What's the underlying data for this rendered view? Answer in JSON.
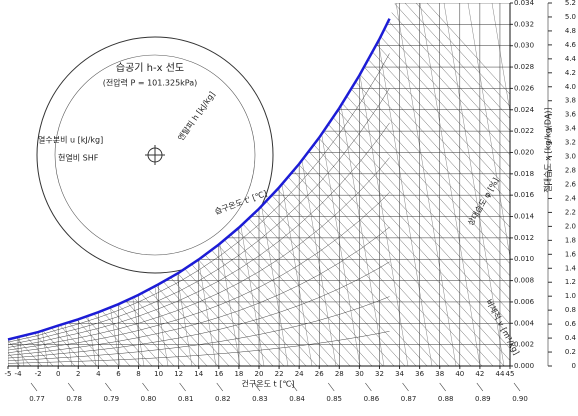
{
  "chart_data": {
    "type": "line",
    "title": "습공기 h-x 선도",
    "subtitle": "(전압력 P = 101.325kPa)",
    "x_label": "건구온도 t [℃]",
    "annotations": [
      "열수분비 u [kJ/kg]",
      "현열비 SHF",
      "엔탈피 h [kJ/kg]",
      "습구온도 t' [℃]",
      "상대습도 φ [%]",
      "절대습도 x [kg/kg(DA)]",
      "비체적 v [m³/kg]"
    ],
    "x": [
      -5,
      -2,
      0,
      2,
      4,
      6,
      8,
      10,
      12,
      14,
      16,
      18,
      20,
      22,
      24,
      26,
      28,
      30,
      32,
      33
    ],
    "values": [
      0.00248,
      0.00318,
      0.00379,
      0.00437,
      0.00504,
      0.00579,
      0.00666,
      0.00766,
      0.00873,
      0.00998,
      0.01138,
      0.01296,
      0.01473,
      0.01672,
      0.01893,
      0.0214,
      0.02416,
      0.02722,
      0.03063,
      0.03253
    ],
    "color": "#1c1cd6",
    "xlim": [
      -5,
      45
    ],
    "xticks": [
      -5,
      -4,
      -2,
      0,
      2,
      4,
      6,
      8,
      10,
      12,
      14,
      16,
      18,
      20,
      22,
      24,
      26,
      28,
      30,
      32,
      34,
      36,
      38,
      40,
      42,
      44,
      45
    ],
    "ylim": [
      0,
      0.034
    ],
    "yticks": [
      {
        "value": 0,
        "label": "0.000"
      },
      0.002,
      0.004,
      0.006,
      0.008,
      {
        "value": 0.01,
        "label": "0.010"
      },
      0.012,
      0.014,
      0.016,
      0.018,
      {
        "value": 0.02,
        "label": "0.020"
      },
      0.022,
      0.024,
      0.026,
      0.028,
      {
        "value": 0.03,
        "label": "0.030"
      },
      0.032,
      0.034
    ],
    "y2lim": [
      0,
      5.2
    ],
    "y2ticks": [
      0,
      0.2,
      0.4,
      0.6,
      0.8,
      {
        "value": 1,
        "label": "1.0"
      },
      1.2,
      1.4,
      1.6,
      1.8,
      {
        "value": 2,
        "label": "2.0"
      },
      2.2,
      2.4,
      2.6,
      2.8,
      {
        "value": 3,
        "label": "3.0"
      },
      3.2,
      3.4,
      3.6,
      3.8,
      {
        "value": 4,
        "label": "4.0"
      },
      4.2,
      4.4,
      4.6,
      4.8,
      {
        "value": 5,
        "label": "5.0"
      },
      5.2
    ],
    "volume_ticks": [
      0.77,
      0.78,
      0.79,
      {
        "value": 0.8,
        "label": "0.80"
      },
      0.81,
      0.82,
      0.83,
      0.84,
      0.85,
      0.86,
      0.87,
      0.88,
      0.89,
      {
        "value": 0.9,
        "label": "0.90"
      }
    ],
    "grid": true
  }
}
